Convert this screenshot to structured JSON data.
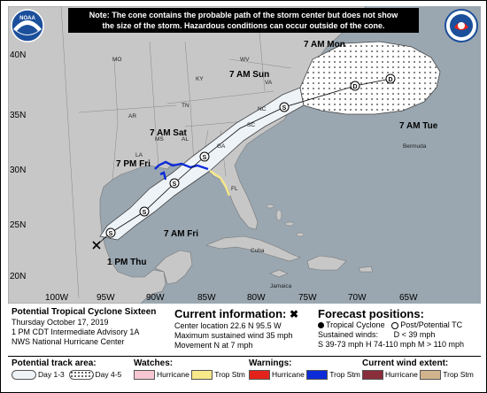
{
  "note": {
    "line1": "Note: The cone contains the probable path of the storm center but does not show",
    "line2": "the size of the storm. Hazardous conditions can occur outside of the cone."
  },
  "map_labels": {
    "lat": [
      "40N",
      "35N",
      "30N",
      "25N",
      "20N"
    ],
    "lon": [
      "100W",
      "95W",
      "90W",
      "85W",
      "80W",
      "75W",
      "70W",
      "65W"
    ],
    "states": [
      "MO",
      "KY",
      "WV",
      "VA",
      "TN",
      "NC",
      "SC",
      "AR",
      "MS",
      "AL",
      "GA",
      "LA",
      "FL"
    ],
    "places": [
      "Bermuda",
      "Cuba",
      "Jamaica"
    ]
  },
  "track": {
    "points": [
      {
        "label": "1 PM Thu",
        "symbol": "x"
      },
      {
        "label": "",
        "symbol": "S"
      },
      {
        "label": "7 AM Fri",
        "symbol": "S"
      },
      {
        "label": "7 PM Fri",
        "symbol": "S"
      },
      {
        "label": "7 AM Sat",
        "symbol": "S"
      },
      {
        "label": "7 AM Sun",
        "symbol": "S"
      },
      {
        "label": "7 AM Mon",
        "symbol": "D"
      },
      {
        "label": "7 AM Tue",
        "symbol": "D"
      }
    ]
  },
  "storm": {
    "name": "Potential Tropical Cyclone Sixteen",
    "date": "Thursday October 17, 2019",
    "advisory": "1 PM CDT Intermediate Advisory 1A",
    "center": "NWS National Hurricane Center"
  },
  "current": {
    "title": "Current information:",
    "location": "Center location 22.6 N 95.5 W",
    "wind": "Maximum sustained wind 35 mph",
    "movement": "Movement N at 7 mph"
  },
  "forecast": {
    "title": "Forecast positions:",
    "tc": "Tropical Cyclone",
    "post": "Post/Potential TC",
    "sustained": "Sustained winds:",
    "d": "D < 39 mph",
    "shm": "S 39-73 mph  H 74-110 mph  M > 110 mph"
  },
  "legend": {
    "track_title": "Potential track area:",
    "day13": "Day 1-3",
    "day45": "Day 4-5",
    "watches_title": "Watches:",
    "watch_hurricane": "Hurricane",
    "watch_tropstm": "Trop Stm",
    "warnings_title": "Warnings:",
    "warn_hurricane": "Hurricane",
    "warn_tropstm": "Trop Stm",
    "extent_title": "Current wind extent:",
    "extent_hurricane": "Hurricane",
    "extent_tropstm": "Trop Stm"
  },
  "colors": {
    "ocean": "#9aa7b1",
    "land": "#c7c7c7",
    "cone_day13": "#eef3f8",
    "watch_hurricane": "#f6c7d0",
    "watch_tropstm": "#f7e889",
    "warn_hurricane": "#e3231b",
    "warn_tropstm": "#0c2bd8",
    "extent_hurricane": "#8a2e3b",
    "extent_tropstm": "#d2b48c"
  }
}
